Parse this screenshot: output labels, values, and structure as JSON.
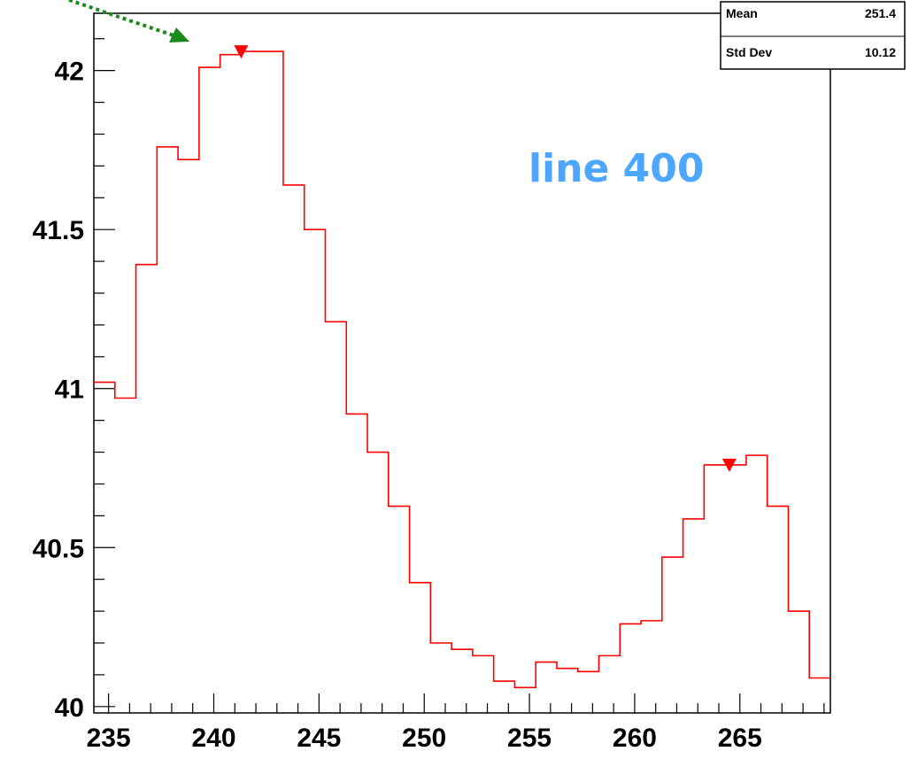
{
  "chart_data": {
    "type": "line",
    "step": true,
    "title": "",
    "xlabel": "",
    "ylabel": "",
    "xlim": [
      234.3,
      269.3
    ],
    "ylim": [
      39.98,
      42.18
    ],
    "x_ticks": [
      235,
      240,
      245,
      250,
      255,
      260,
      265
    ],
    "y_ticks": [
      40,
      40.5,
      41,
      41.5,
      42
    ],
    "bin_width": 1,
    "bin_edges_start": 234.3,
    "series": [
      {
        "color": "#ff0000",
        "values": [
          41.02,
          40.97,
          41.39,
          41.76,
          41.72,
          42.01,
          42.05,
          42.06,
          42.06,
          41.64,
          41.5,
          41.21,
          40.92,
          40.8,
          40.63,
          40.39,
          40.2,
          40.18,
          40.16,
          40.08,
          40.06,
          40.14,
          40.12,
          40.11,
          40.16,
          40.26,
          40.27,
          40.47,
          40.59,
          40.76,
          40.76,
          40.79,
          40.63,
          40.3,
          40.09
        ]
      }
    ],
    "markers": [
      {
        "x": 241.3,
        "y": 42.06,
        "shape": "triangle-down",
        "color": "#ff0000"
      },
      {
        "x": 264.5,
        "y": 40.76,
        "shape": "triangle-down",
        "color": "#ff0000"
      }
    ],
    "stats_box": {
      "rows": [
        {
          "label": "Mean",
          "value": "251.4"
        },
        {
          "label": "Std Dev",
          "value": "10.12"
        }
      ]
    },
    "annotation": {
      "text": "line 400",
      "color": "#4da6ff"
    },
    "arrow": {
      "color": "#1a8a1a",
      "style": "dotted"
    },
    "grid": false,
    "legend": "none"
  }
}
